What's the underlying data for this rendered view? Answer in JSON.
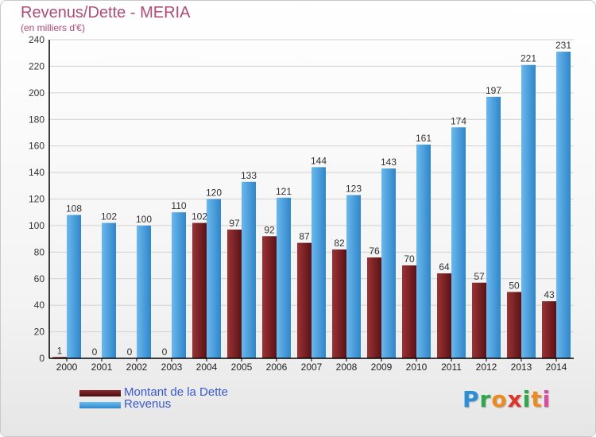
{
  "header": {
    "title": "Revenus/Dette - MERIA",
    "subtitle": "(en milliers d'€)"
  },
  "chart_data": {
    "type": "bar",
    "categories": [
      "2000",
      "2001",
      "2002",
      "2003",
      "2004",
      "2005",
      "2006",
      "2007",
      "2008",
      "2009",
      "2010",
      "2011",
      "2012",
      "2013",
      "2014"
    ],
    "series": [
      {
        "name": "Montant de la Dette",
        "color": "#7a1f22",
        "values": [
          1,
          0,
          0,
          0,
          102,
          97,
          92,
          87,
          82,
          76,
          70,
          64,
          57,
          50,
          43
        ]
      },
      {
        "name": "Revenus",
        "color": "#4aa3e3",
        "values": [
          108,
          102,
          100,
          110,
          120,
          133,
          121,
          144,
          123,
          143,
          161,
          174,
          197,
          221,
          231
        ]
      }
    ],
    "ylim": [
      0,
      240
    ],
    "yticks": [
      0,
      20,
      40,
      60,
      80,
      100,
      120,
      140,
      160,
      180,
      200,
      220,
      240
    ],
    "grid": true,
    "legend": "bottom-left"
  },
  "legend": {
    "debt_label": "Montant de la Dette",
    "revenue_label": "Revenus"
  },
  "logo": {
    "letters": [
      "P",
      "r",
      "o",
      "x",
      "i",
      "t",
      "i"
    ],
    "colors": [
      "#2a8fd6",
      "#2aa84a",
      "#ef8a1c",
      "#e0342a",
      "#2aa84a",
      "#ef8a1c",
      "#e04aa0"
    ]
  }
}
